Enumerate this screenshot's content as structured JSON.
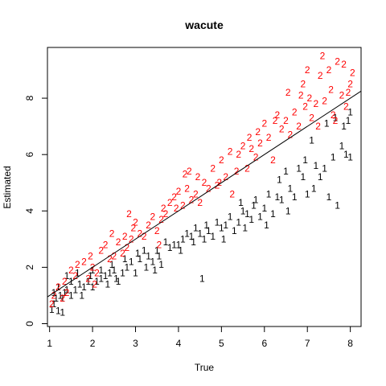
{
  "chart_data": {
    "type": "scatter",
    "title": "wacute",
    "xlabel": "True",
    "ylabel": "Estimated",
    "xlim": [
      0.95,
      8.25
    ],
    "ylim": [
      -0.1,
      9.8
    ],
    "xticks": [
      "1",
      "2",
      "3",
      "4",
      "5",
      "6",
      "7",
      "8"
    ],
    "yticks": [
      "0",
      "2",
      "4",
      "6",
      "8"
    ],
    "grid": false,
    "legend": "none",
    "colors": {
      "1": "#000000",
      "2": "#ff0000",
      "line": "#000000"
    },
    "reference_line": {
      "intercept": 0.0,
      "slope": 1.0
    },
    "series": [
      {
        "marker": "1",
        "points": [
          [
            1.05,
            0.5
          ],
          [
            1.1,
            0.7
          ],
          [
            1.2,
            0.45
          ],
          [
            1.3,
            0.4
          ],
          [
            1.15,
            0.9
          ],
          [
            1.25,
            1.0
          ],
          [
            1.35,
            1.1
          ],
          [
            1.1,
            1.1
          ],
          [
            1.4,
            1.2
          ],
          [
            1.2,
            1.3
          ],
          [
            1.5,
            1.0
          ],
          [
            1.6,
            1.2
          ],
          [
            1.7,
            1.4
          ],
          [
            1.8,
            1.3
          ],
          [
            1.9,
            1.5
          ],
          [
            1.5,
            1.5
          ],
          [
            1.4,
            1.7
          ],
          [
            1.65,
            1.8
          ],
          [
            1.95,
            1.7
          ],
          [
            2.0,
            1.3
          ],
          [
            2.1,
            1.5
          ],
          [
            2.2,
            1.6
          ],
          [
            2.3,
            1.7
          ],
          [
            2.2,
            1.9
          ],
          [
            2.4,
            1.8
          ],
          [
            2.5,
            1.9
          ],
          [
            2.45,
            2.1
          ],
          [
            2.0,
            1.9
          ],
          [
            2.6,
            1.5
          ],
          [
            2.7,
            1.8
          ],
          [
            2.8,
            2.0
          ],
          [
            2.9,
            2.2
          ],
          [
            2.75,
            2.3
          ],
          [
            3.0,
            1.8
          ],
          [
            3.05,
            2.5
          ],
          [
            3.1,
            2.3
          ],
          [
            3.2,
            2.6
          ],
          [
            3.3,
            2.4
          ],
          [
            3.4,
            2.2
          ],
          [
            3.5,
            2.6
          ],
          [
            3.6,
            2.1
          ],
          [
            3.55,
            2.4
          ],
          [
            3.7,
            2.9
          ],
          [
            3.8,
            2.7
          ],
          [
            3.9,
            2.8
          ],
          [
            4.0,
            2.8
          ],
          [
            4.1,
            3.0
          ],
          [
            4.2,
            3.2
          ],
          [
            4.3,
            3.1
          ],
          [
            4.4,
            3.4
          ],
          [
            4.5,
            3.2
          ],
          [
            4.6,
            3.0
          ],
          [
            4.55,
            1.6
          ],
          [
            4.65,
            3.5
          ],
          [
            4.7,
            3.3
          ],
          [
            4.8,
            3.1
          ],
          [
            4.9,
            3.6
          ],
          [
            5.0,
            3.4
          ],
          [
            5.1,
            3.5
          ],
          [
            5.2,
            3.8
          ],
          [
            5.3,
            3.3
          ],
          [
            5.4,
            3.6
          ],
          [
            5.45,
            4.3
          ],
          [
            5.5,
            4.0
          ],
          [
            5.6,
            3.9
          ],
          [
            5.7,
            3.7
          ],
          [
            5.75,
            4.2
          ],
          [
            5.8,
            4.4
          ],
          [
            5.9,
            3.8
          ],
          [
            6.0,
            4.1
          ],
          [
            6.1,
            4.6
          ],
          [
            6.2,
            3.9
          ],
          [
            6.3,
            4.5
          ],
          [
            6.35,
            5.1
          ],
          [
            6.4,
            4.4
          ],
          [
            6.5,
            5.4
          ],
          [
            6.6,
            4.8
          ],
          [
            6.7,
            4.5
          ],
          [
            6.8,
            5.5
          ],
          [
            6.9,
            5.2
          ],
          [
            6.95,
            5.8
          ],
          [
            7.0,
            4.6
          ],
          [
            7.1,
            6.5
          ],
          [
            7.2,
            5.6
          ],
          [
            7.3,
            5.2
          ],
          [
            7.4,
            5.5
          ],
          [
            7.5,
            4.5
          ],
          [
            7.6,
            5.9
          ],
          [
            7.7,
            4.2
          ],
          [
            7.8,
            6.3
          ],
          [
            7.85,
            7.0
          ],
          [
            7.9,
            6.0
          ],
          [
            7.95,
            7.2
          ],
          [
            8.0,
            5.9
          ],
          [
            7.65,
            7.3
          ],
          [
            7.45,
            7.1
          ],
          [
            8.0,
            7.5
          ],
          [
            1.3,
            0.9
          ],
          [
            2.55,
            1.6
          ],
          [
            3.25,
            2.0
          ],
          [
            4.05,
            2.6
          ],
          [
            5.05,
            3.0
          ],
          [
            6.05,
            3.5
          ],
          [
            6.55,
            4.0
          ],
          [
            7.15,
            4.8
          ],
          [
            1.75,
            1.0
          ],
          [
            2.35,
            1.4
          ],
          [
            3.45,
            1.9
          ],
          [
            4.35,
            2.9
          ],
          [
            5.55,
            3.4
          ]
        ]
      },
      {
        "marker": "2",
        "points": [
          [
            1.05,
            0.7
          ],
          [
            1.1,
            1.0
          ],
          [
            1.2,
            1.3
          ],
          [
            1.3,
            0.9
          ],
          [
            1.35,
            1.5
          ],
          [
            1.5,
            1.9
          ],
          [
            1.6,
            1.7
          ],
          [
            1.65,
            2.1
          ],
          [
            1.8,
            2.2
          ],
          [
            1.9,
            1.6
          ],
          [
            1.95,
            2.4
          ],
          [
            2.0,
            2.0
          ],
          [
            2.1,
            1.8
          ],
          [
            2.2,
            2.6
          ],
          [
            2.3,
            2.8
          ],
          [
            2.4,
            2.3
          ],
          [
            2.5,
            2.4
          ],
          [
            2.6,
            2.9
          ],
          [
            2.7,
            2.5
          ],
          [
            2.75,
            3.1
          ],
          [
            2.8,
            2.7
          ],
          [
            2.9,
            3.0
          ],
          [
            2.95,
            3.4
          ],
          [
            3.0,
            3.6
          ],
          [
            3.1,
            3.2
          ],
          [
            3.2,
            3.1
          ],
          [
            3.3,
            3.5
          ],
          [
            3.4,
            3.8
          ],
          [
            3.5,
            3.3
          ],
          [
            3.6,
            3.7
          ],
          [
            3.65,
            4.1
          ],
          [
            3.7,
            3.9
          ],
          [
            3.8,
            4.3
          ],
          [
            3.9,
            4.5
          ],
          [
            3.95,
            4.1
          ],
          [
            4.0,
            4.7
          ],
          [
            4.1,
            4.2
          ],
          [
            4.2,
            4.8
          ],
          [
            4.25,
            5.4
          ],
          [
            4.3,
            4.4
          ],
          [
            4.4,
            4.6
          ],
          [
            4.45,
            5.2
          ],
          [
            4.5,
            4.3
          ],
          [
            4.6,
            5.0
          ],
          [
            4.7,
            4.8
          ],
          [
            4.8,
            5.5
          ],
          [
            4.9,
            4.9
          ],
          [
            5.0,
            5.8
          ],
          [
            5.1,
            5.2
          ],
          [
            5.2,
            6.1
          ],
          [
            5.25,
            4.6
          ],
          [
            5.35,
            5.4
          ],
          [
            5.4,
            6.0
          ],
          [
            5.5,
            6.3
          ],
          [
            5.6,
            5.5
          ],
          [
            5.7,
            6.2
          ],
          [
            5.8,
            5.9
          ],
          [
            5.85,
            6.8
          ],
          [
            5.9,
            6.4
          ],
          [
            6.0,
            7.1
          ],
          [
            6.1,
            6.6
          ],
          [
            6.2,
            5.8
          ],
          [
            6.3,
            7.4
          ],
          [
            6.4,
            6.9
          ],
          [
            6.5,
            7.2
          ],
          [
            6.55,
            8.2
          ],
          [
            6.6,
            6.7
          ],
          [
            6.7,
            7.5
          ],
          [
            6.8,
            7.0
          ],
          [
            6.9,
            8.5
          ],
          [
            6.95,
            7.7
          ],
          [
            7.0,
            9.0
          ],
          [
            7.05,
            8.0
          ],
          [
            7.1,
            7.3
          ],
          [
            7.2,
            7.8
          ],
          [
            7.3,
            8.8
          ],
          [
            7.35,
            9.5
          ],
          [
            7.4,
            7.9
          ],
          [
            7.5,
            9.0
          ],
          [
            7.55,
            8.3
          ],
          [
            7.6,
            7.4
          ],
          [
            7.7,
            9.3
          ],
          [
            7.8,
            8.1
          ],
          [
            7.85,
            9.2
          ],
          [
            7.9,
            7.7
          ],
          [
            7.95,
            8.2
          ],
          [
            8.0,
            8.5
          ],
          [
            8.05,
            8.9
          ],
          [
            1.4,
            1.1
          ],
          [
            2.05,
            1.4
          ],
          [
            2.85,
            3.9
          ],
          [
            3.55,
            2.8
          ],
          [
            4.15,
            5.3
          ],
          [
            4.95,
            5.0
          ],
          [
            5.65,
            6.6
          ],
          [
            6.25,
            7.2
          ],
          [
            6.85,
            8.1
          ],
          [
            7.25,
            7.0
          ],
          [
            7.65,
            7.2
          ],
          [
            2.45,
            3.2
          ]
        ]
      }
    ]
  }
}
